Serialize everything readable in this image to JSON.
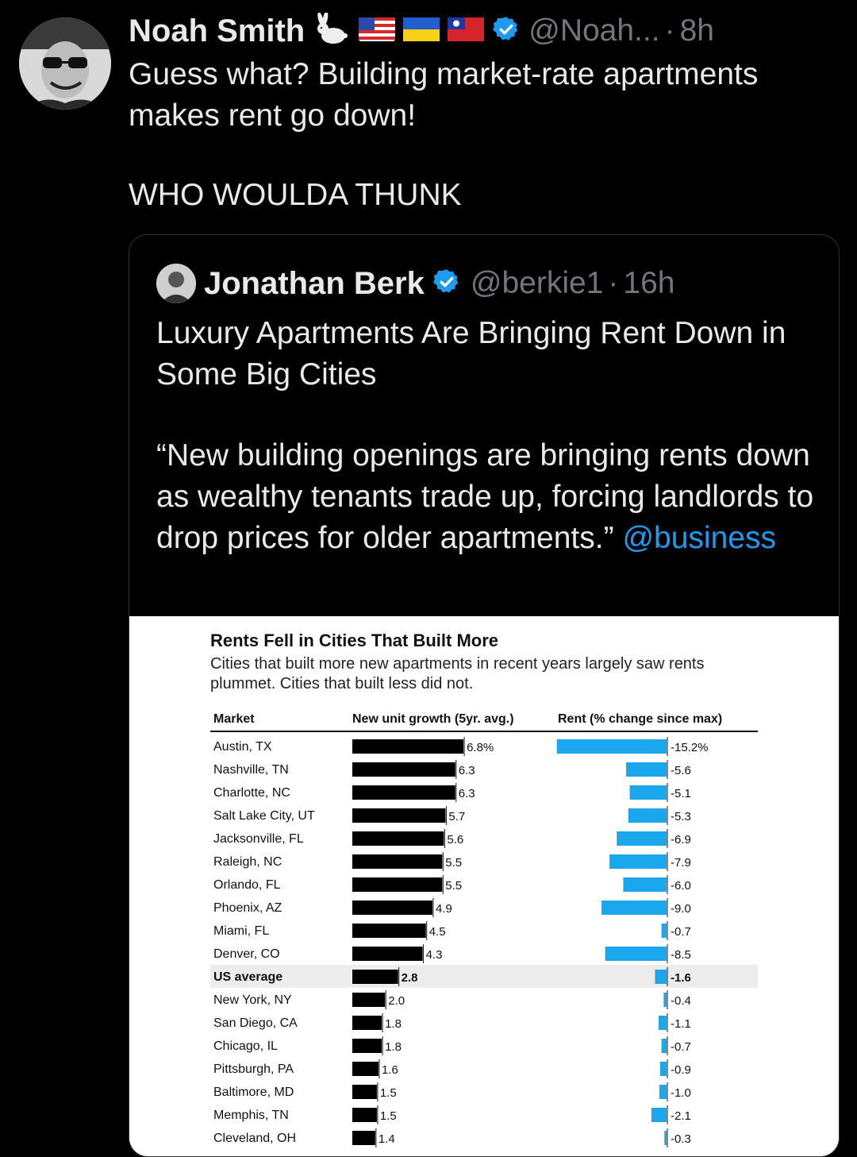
{
  "tweet": {
    "author_name": "Noah Smith",
    "author_handle": "@Noah...",
    "time": "8h",
    "text_line1": "Guess what? Building market-rate apartments",
    "text_line2": "makes rent go down!",
    "text_line3": "WHO WOULDA THUNK",
    "separator": "·"
  },
  "quoted": {
    "author_name": "Jonathan Berk",
    "author_handle": "@berkie1",
    "time": "16h",
    "separator": "·",
    "headline": "Luxury Apartments Are Bringing Rent Down in Some Big Cities",
    "quote_text": "“New building openings are bringing rents down as wealthy tenants trade up, forcing landlords to drop prices for older apartments.”",
    "mention": "@business"
  },
  "colors": {
    "background": "#000000",
    "text": "#e7e9ea",
    "muted": "#71767b",
    "link": "#1d9bf0",
    "verified": "#1d9bf0",
    "bar_black": "#000000",
    "bar_blue": "#1aa7ec",
    "highlight_row": "#ececec"
  },
  "icons": [
    "rabbit-emoji",
    "us-flag-icon",
    "ukraine-flag-icon",
    "taiwan-flag-icon",
    "verified-badge-icon"
  ],
  "chart_data": {
    "type": "bar",
    "title": "Rents Fell in Cities That Built More",
    "subtitle": "Cities that built more new apartments in recent years largely saw rents plummet. Cities that built less did not.",
    "column_headers": [
      "Market",
      "New unit growth (5yr. avg.)",
      "Rent (% change since max)"
    ],
    "categories": [
      "Austin, TX",
      "Nashville, TN",
      "Charlotte, NC",
      "Salt Lake City, UT",
      "Jacksonville, FL",
      "Raleigh, NC",
      "Orlando, FL",
      "Phoenix, AZ",
      "Miami, FL",
      "Denver, CO",
      "US average",
      "New York, NY",
      "San Diego, CA",
      "Chicago, IL",
      "Pittsburgh, PA",
      "Baltimore, MD",
      "Memphis, TN",
      "Cleveland, OH"
    ],
    "highlighted_category": "US average",
    "series": [
      {
        "name": "New unit growth (5yr. avg.)",
        "values": [
          6.8,
          6.3,
          6.3,
          5.7,
          5.6,
          5.5,
          5.5,
          4.9,
          4.5,
          4.3,
          2.8,
          2.0,
          1.8,
          1.8,
          1.6,
          1.5,
          1.5,
          1.4
        ],
        "labels": [
          "6.8%",
          "6.3",
          "6.3",
          "5.7",
          "5.6",
          "5.5",
          "5.5",
          "4.9",
          "4.5",
          "4.3",
          "2.8",
          "2.0",
          "1.8",
          "1.8",
          "1.6",
          "1.5",
          "1.5",
          "1.4"
        ]
      },
      {
        "name": "Rent (% change since max)",
        "values": [
          -15.2,
          -5.6,
          -5.1,
          -5.3,
          -6.9,
          -7.9,
          -6.0,
          -9.0,
          -0.7,
          -8.5,
          -1.6,
          -0.4,
          -1.1,
          -0.7,
          -0.9,
          -1.0,
          -2.1,
          -0.3
        ],
        "labels": [
          "-15.2%",
          "-5.6",
          "-5.1",
          "-5.3",
          "-6.9",
          "-7.9",
          "-6.0",
          "-9.0",
          "-0.7",
          "-8.5",
          "-1.6",
          "-0.4",
          "-1.1",
          "-0.7",
          "-0.9",
          "-1.0",
          "-2.1",
          "-0.3"
        ]
      }
    ]
  }
}
